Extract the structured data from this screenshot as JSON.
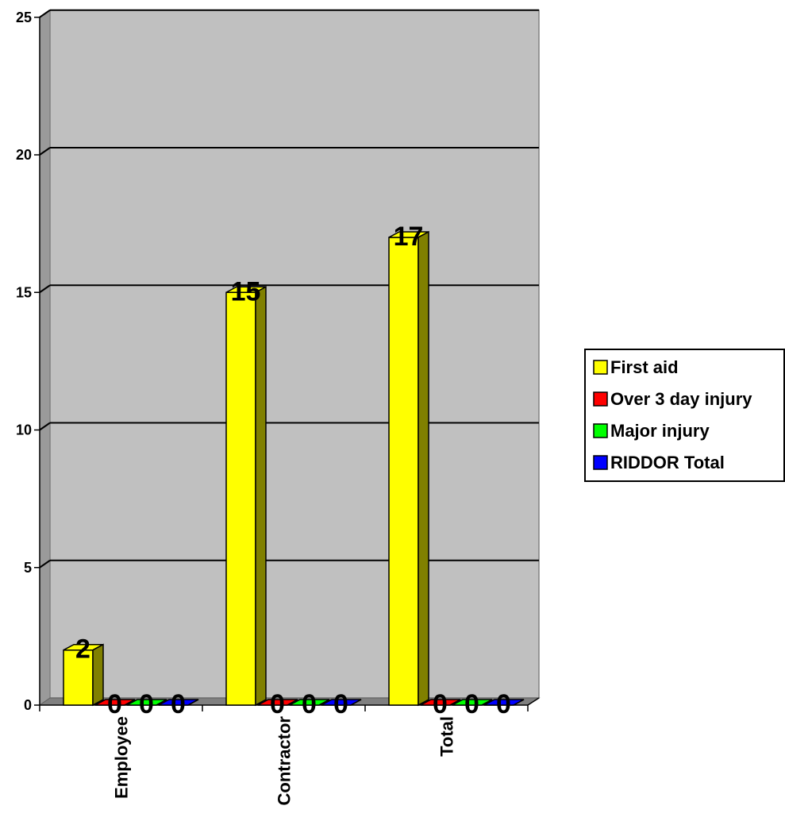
{
  "chart_data": {
    "type": "bar",
    "variant": "3d-clustered-column",
    "categories": [
      "Employee",
      "Contractor",
      "Total"
    ],
    "series": [
      {
        "name": "First aid",
        "values": [
          2,
          15,
          17
        ],
        "color": "#ffff00",
        "side_color": "#808000"
      },
      {
        "name": "Over 3 day injury",
        "values": [
          0,
          0,
          0
        ],
        "color": "#ff0000",
        "side_color": "#800000"
      },
      {
        "name": "Major injury",
        "values": [
          0,
          0,
          0
        ],
        "color": "#00ff00",
        "side_color": "#008000"
      },
      {
        "name": "RIDDOR Total",
        "values": [
          0,
          0,
          0
        ],
        "color": "#0000ff",
        "side_color": "#000080"
      }
    ],
    "ylim": [
      0,
      25
    ],
    "yticks": [
      "0",
      "5",
      "10",
      "15",
      "20",
      "25"
    ],
    "ytick_values": [
      0,
      5,
      10,
      15,
      20,
      25
    ],
    "grid": true,
    "data_labels": true,
    "legend_position": "right",
    "wall_color": "#c0c0c0",
    "title": "",
    "xlabel": "",
    "ylabel": ""
  }
}
